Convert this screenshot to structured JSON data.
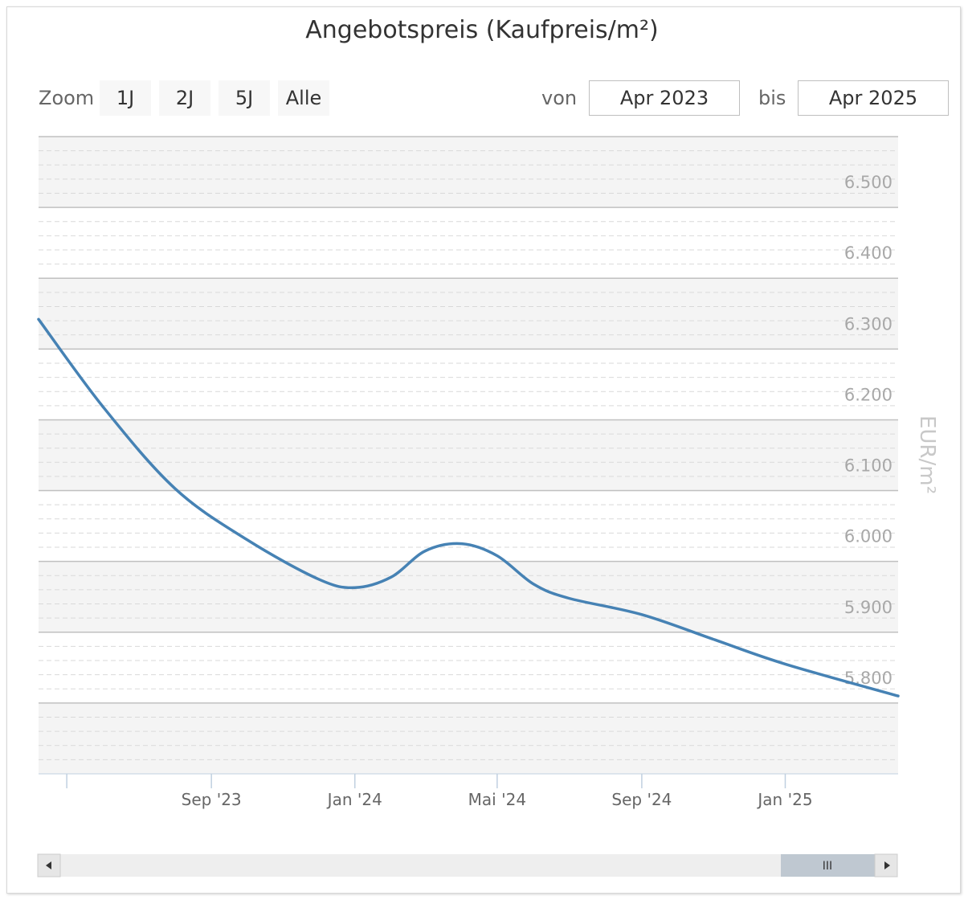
{
  "chart_data": {
    "type": "line",
    "title": "Angebotspreis (Kaufpreis/m²)",
    "ylabel": "EUR/m²",
    "ylim": [
      5.7,
      6.6
    ],
    "y_ticks": [
      5.8,
      5.9,
      6.0,
      6.1,
      6.2,
      6.3,
      6.4,
      6.5
    ],
    "y_tick_labels": [
      "5.800",
      "5.900",
      "6.000",
      "6.100",
      "6.200",
      "6.300",
      "6.400",
      "6.500"
    ],
    "xlim": [
      "2023-04-07",
      "2025-04-07"
    ],
    "x_ticks": [
      "2023-05-01",
      "2023-09-01",
      "2024-01-01",
      "2024-05-01",
      "2024-09-01",
      "2025-01-01"
    ],
    "x_tick_labels": [
      "",
      "Sep '23",
      "Jan '24",
      "Mai '24",
      "Sep '24",
      "Jan '25"
    ],
    "series": [
      {
        "color": "#4682b4",
        "x": [
          "2023-04-07",
          "2023-06-01",
          "2023-08-01",
          "2023-10-01",
          "2023-12-01",
          "2024-01-01",
          "2024-02-01",
          "2024-03-01",
          "2024-04-01",
          "2024-05-01",
          "2024-06-01",
          "2024-07-01",
          "2024-09-01",
          "2024-11-01",
          "2025-01-01",
          "2025-04-07"
        ],
        "values": [
          6.342,
          6.218,
          6.103,
          6.031,
          5.975,
          5.963,
          5.978,
          6.015,
          6.025,
          6.008,
          5.968,
          5.948,
          5.925,
          5.89,
          5.855,
          5.81
        ]
      }
    ],
    "grid": true,
    "alternate_band_color": "#f4f4f4"
  },
  "toolbar": {
    "zoom_label": "Zoom",
    "zoom_buttons": [
      "1J",
      "2J",
      "5J",
      "Alle"
    ],
    "from_label": "von",
    "from_value": "Apr 2023",
    "to_label": "bis",
    "to_value": "Apr 2025"
  },
  "navigator": {
    "grip_glyph": "III"
  }
}
